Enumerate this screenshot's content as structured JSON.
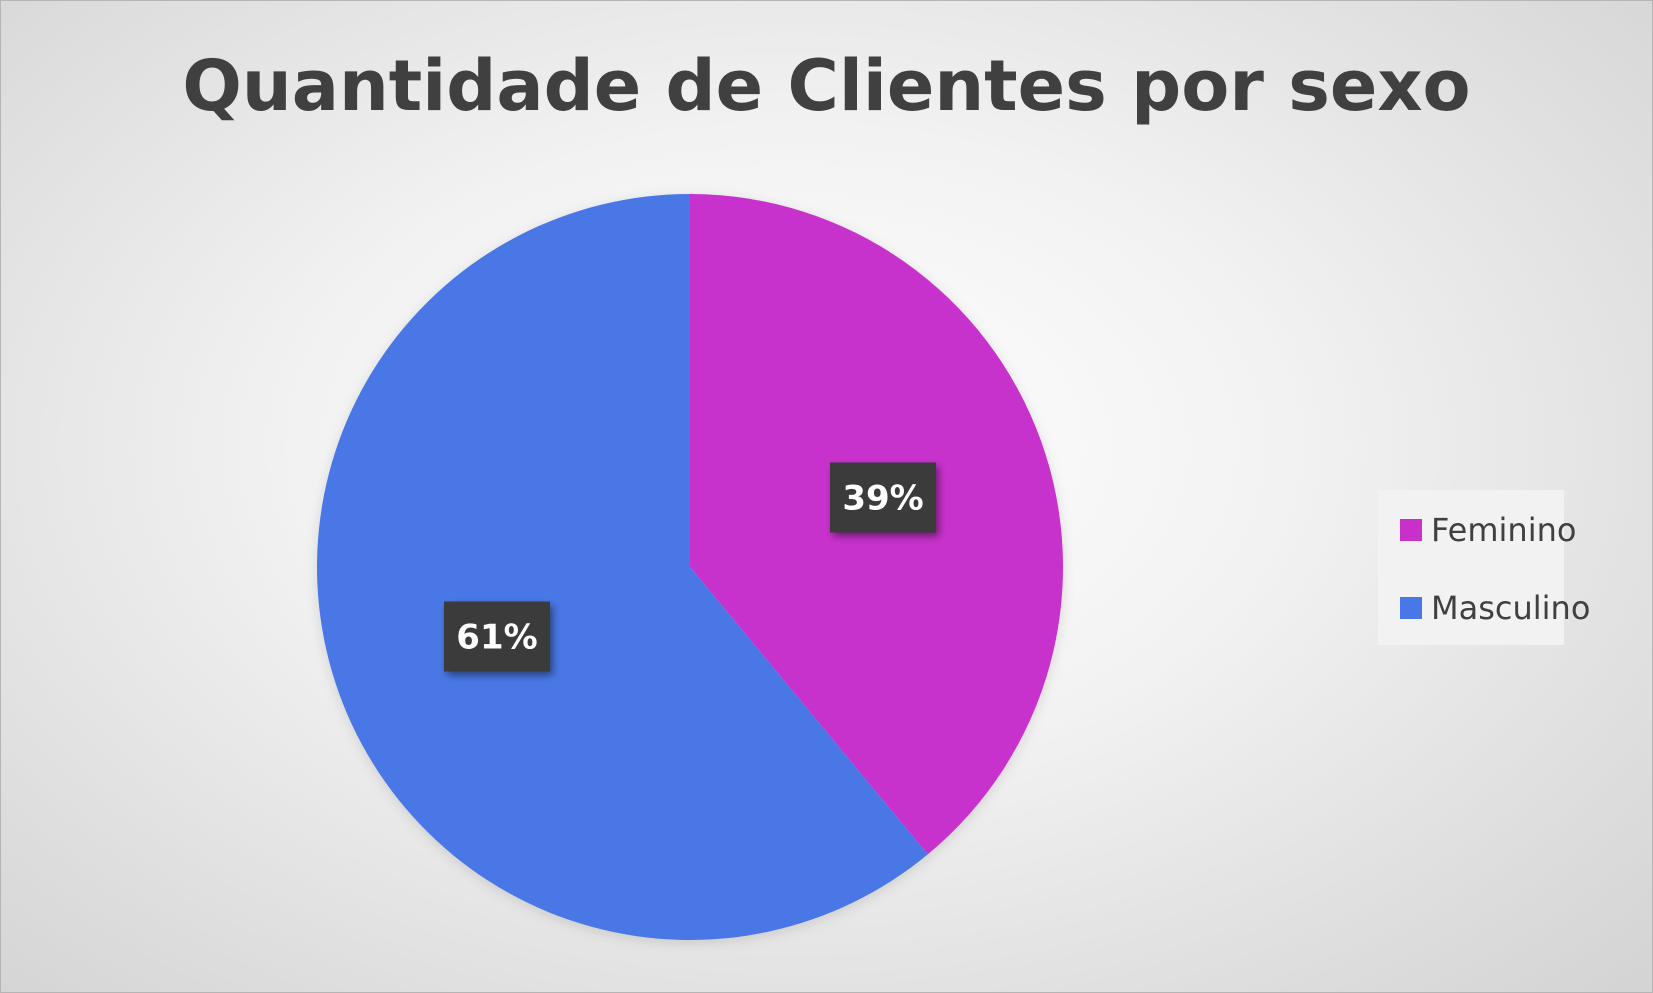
{
  "chart_data": {
    "type": "pie",
    "title": "Quantidade de Clientes por sexo",
    "categories": [
      "Feminino",
      "Masculino"
    ],
    "values": [
      39,
      61
    ],
    "labels": [
      "39%",
      "61%"
    ],
    "colors": [
      "#C830CC",
      "#4878E6"
    ],
    "start_angle_deg": 0,
    "direction": "clockwise",
    "legend": {
      "placement": "right",
      "items": [
        "Feminino",
        "Masculino"
      ]
    }
  }
}
